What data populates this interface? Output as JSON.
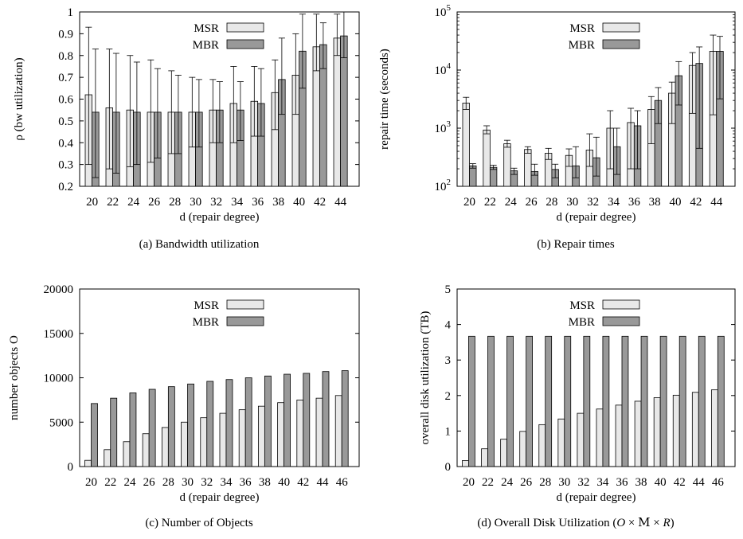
{
  "colors": {
    "msr": "#e8e8e8",
    "mbr": "#999999",
    "stroke": "#000000"
  },
  "chart_data": [
    {
      "type": "bar",
      "caption": "(a) Bandwidth utilization",
      "xlabel": "d (repair degree)",
      "ylabel": "ρ (bw utilization)",
      "scale": "linear",
      "ylim": [
        0.2,
        1
      ],
      "yticks": [
        "0.2",
        "0.3",
        "0.4",
        "0.5",
        "0.6",
        "0.7",
        "0.8",
        "0.9",
        "1"
      ],
      "yticks_values": [
        0.2,
        0.3,
        0.4,
        0.5,
        0.6,
        0.7,
        0.8,
        0.9,
        1
      ],
      "categories": [
        "20",
        "22",
        "24",
        "26",
        "28",
        "30",
        "32",
        "34",
        "36",
        "38",
        "40",
        "42",
        "44"
      ],
      "legend": {
        "placement": "top-center"
      },
      "series": [
        {
          "name": "MSR",
          "values": [
            0.62,
            0.56,
            0.55,
            0.54,
            0.54,
            0.54,
            0.55,
            0.58,
            0.59,
            0.63,
            0.71,
            0.84,
            0.88
          ],
          "err_low": [
            0.3,
            0.28,
            0.29,
            0.31,
            0.35,
            0.38,
            0.4,
            0.4,
            0.43,
            0.46,
            0.53,
            0.73,
            0.8
          ],
          "err_high": [
            0.93,
            0.83,
            0.8,
            0.78,
            0.73,
            0.7,
            0.69,
            0.75,
            0.75,
            0.78,
            0.9,
            0.99,
            0.99
          ]
        },
        {
          "name": "MBR",
          "values": [
            0.54,
            0.54,
            0.54,
            0.54,
            0.54,
            0.54,
            0.55,
            0.55,
            0.58,
            0.69,
            0.82,
            0.85,
            0.89
          ],
          "err_low": [
            0.24,
            0.26,
            0.3,
            0.33,
            0.35,
            0.38,
            0.4,
            0.41,
            0.43,
            0.53,
            0.65,
            0.74,
            0.79
          ],
          "err_high": [
            0.83,
            0.81,
            0.77,
            0.74,
            0.71,
            0.69,
            0.68,
            0.68,
            0.74,
            0.88,
            0.99,
            0.95,
            1.0
          ]
        }
      ]
    },
    {
      "type": "bar",
      "caption": "(b) Repair times",
      "xlabel": "d (repair degree)",
      "ylabel": "repair time (seconds)",
      "scale": "log",
      "ylim": [
        100,
        100000
      ],
      "yticks": [
        {
          "base": "10",
          "exp": "2"
        },
        {
          "base": "10",
          "exp": "3"
        },
        {
          "base": "10",
          "exp": "4"
        },
        {
          "base": "10",
          "exp": "5"
        }
      ],
      "yticks_values": [
        100,
        1000,
        10000,
        100000
      ],
      "categories": [
        "20",
        "22",
        "24",
        "26",
        "28",
        "30",
        "32",
        "34",
        "36",
        "38",
        "40",
        "42",
        "44"
      ],
      "legend": {
        "placement": "top-center"
      },
      "series": [
        {
          "name": "MSR",
          "values": [
            2700,
            930,
            540,
            430,
            370,
            340,
            420,
            1000,
            1250,
            2100,
            4000,
            12000,
            21000
          ],
          "err_low": [
            2100,
            800,
            470,
            370,
            290,
            220,
            220,
            200,
            200,
            540,
            1200,
            1800,
            1700
          ],
          "err_high": [
            3400,
            1100,
            620,
            480,
            450,
            440,
            800,
            2000,
            2200,
            3500,
            6200,
            20000,
            40000
          ]
        },
        {
          "name": "MBR",
          "values": [
            225,
            212,
            185,
            180,
            195,
            225,
            310,
            480,
            1100,
            3000,
            8000,
            13000,
            21000
          ],
          "err_low": [
            205,
            195,
            160,
            155,
            140,
            140,
            150,
            160,
            200,
            1200,
            2500,
            450,
            3200
          ],
          "err_high": [
            245,
            230,
            205,
            240,
            240,
            480,
            700,
            1000,
            2000,
            5000,
            14000,
            25000,
            38000
          ]
        }
      ]
    },
    {
      "type": "bar",
      "caption": "(c) Number of Objects",
      "xlabel": "d (repair degree)",
      "ylabel": "number objects O",
      "scale": "linear",
      "ylim": [
        0,
        20000
      ],
      "yticks": [
        "0",
        "5000",
        "10000",
        "15000",
        "20000"
      ],
      "yticks_values": [
        0,
        5000,
        10000,
        15000,
        20000
      ],
      "categories": [
        "20",
        "22",
        "24",
        "26",
        "28",
        "30",
        "32",
        "34",
        "36",
        "38",
        "40",
        "42",
        "44",
        "46"
      ],
      "legend": {
        "placement": "top-center"
      },
      "series": [
        {
          "name": "MSR",
          "values": [
            700,
            1900,
            2800,
            3700,
            4400,
            5000,
            5500,
            6000,
            6400,
            6800,
            7200,
            7500,
            7700,
            8000
          ]
        },
        {
          "name": "MBR",
          "values": [
            7100,
            7700,
            8300,
            8700,
            9000,
            9300,
            9600,
            9800,
            10000,
            10200,
            10400,
            10500,
            10700,
            10800
          ]
        }
      ]
    },
    {
      "type": "bar",
      "caption_parts": [
        "(d) Overall Disk Utilization (",
        "O",
        " × ",
        "M",
        " × ",
        "R",
        ")"
      ],
      "xlabel": "d (repair degree)",
      "ylabel": "overall disk utilization (TB)",
      "scale": "linear",
      "ylim": [
        0,
        5
      ],
      "yticks": [
        "0",
        "1",
        "2",
        "3",
        "4",
        "5"
      ],
      "yticks_values": [
        0,
        1,
        2,
        3,
        4,
        5
      ],
      "categories": [
        "20",
        "22",
        "24",
        "26",
        "28",
        "30",
        "32",
        "34",
        "36",
        "38",
        "40",
        "42",
        "44",
        "46"
      ],
      "legend": {
        "placement": "top-center"
      },
      "series": [
        {
          "name": "MSR",
          "values": [
            0.17,
            0.5,
            0.77,
            0.99,
            1.18,
            1.34,
            1.5,
            1.62,
            1.73,
            1.84,
            1.94,
            2.01,
            2.09,
            2.16
          ]
        },
        {
          "name": "MBR",
          "values": [
            3.67,
            3.67,
            3.67,
            3.67,
            3.67,
            3.67,
            3.67,
            3.67,
            3.67,
            3.67,
            3.67,
            3.67,
            3.67,
            3.67
          ]
        }
      ]
    }
  ]
}
